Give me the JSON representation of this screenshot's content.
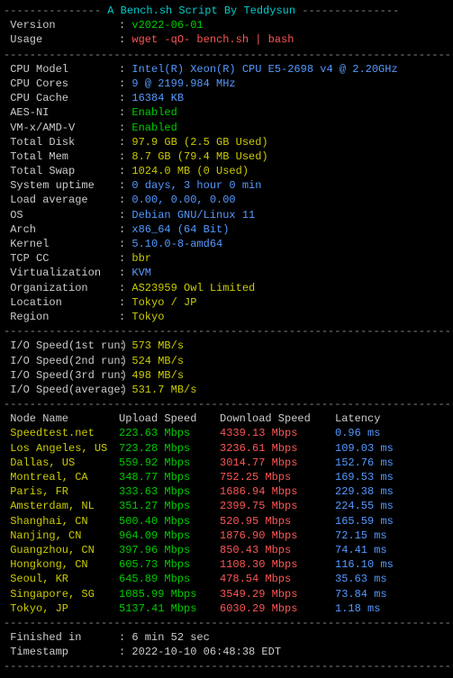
{
  "title": "A Bench.sh Script By Teddysun",
  "version_label": " Version",
  "version_value": "v2022-06-01",
  "usage_label": " Usage",
  "usage_value": "wget -qO- bench.sh | bash",
  "sys": [
    {
      "label": " CPU Model",
      "value": "Intel(R) Xeon(R) CPU E5-2698 v4 @ 2.20GHz",
      "color": "blue"
    },
    {
      "label": " CPU Cores",
      "value": "9 @ 2199.984 MHz",
      "color": "blue"
    },
    {
      "label": " CPU Cache",
      "value": "16384 KB",
      "color": "blue"
    },
    {
      "label": " AES-NI",
      "value": "Enabled",
      "color": "green"
    },
    {
      "label": " VM-x/AMD-V",
      "value": "Enabled",
      "color": "green"
    },
    {
      "label": " Total Disk",
      "value": "97.9 GB (2.5 GB Used)",
      "color": "yellow"
    },
    {
      "label": " Total Mem",
      "value": "8.7 GB (79.4 MB Used)",
      "color": "yellow"
    },
    {
      "label": " Total Swap",
      "value": "1024.0 MB (0 Used)",
      "color": "yellow"
    },
    {
      "label": " System uptime",
      "value": "0 days, 3 hour 0 min",
      "color": "blue"
    },
    {
      "label": " Load average",
      "value": "0.00, 0.00, 0.00",
      "color": "blue"
    },
    {
      "label": " OS",
      "value": "Debian GNU/Linux 11",
      "color": "blue"
    },
    {
      "label": " Arch",
      "value": "x86_64 (64 Bit)",
      "color": "blue"
    },
    {
      "label": " Kernel",
      "value": "5.10.0-8-amd64",
      "color": "blue"
    },
    {
      "label": " TCP CC",
      "value": "bbr",
      "color": "yellow"
    },
    {
      "label": " Virtualization",
      "value": "KVM",
      "color": "blue"
    },
    {
      "label": " Organization",
      "value": "AS23959 Owl Limited",
      "color": "yellow"
    },
    {
      "label": " Location",
      "value": "Tokyo / JP",
      "color": "yellow"
    },
    {
      "label": " Region",
      "value": "Tokyo",
      "color": "yellow"
    }
  ],
  "io": [
    {
      "label": " I/O Speed(1st run)",
      "value": "573 MB/s"
    },
    {
      "label": " I/O Speed(2nd run)",
      "value": "524 MB/s"
    },
    {
      "label": " I/O Speed(3rd run)",
      "value": "498 MB/s"
    },
    {
      "label": " I/O Speed(average)",
      "value": "531.7 MB/s"
    }
  ],
  "speed_headers": {
    "node": " Node Name",
    "up": "Upload Speed",
    "down": "Download Speed",
    "lat": "Latency"
  },
  "speed": [
    {
      "node": " Speedtest.net",
      "up": "223.63 Mbps",
      "down": "4339.13 Mbps",
      "lat": "0.96 ms"
    },
    {
      "node": " Los Angeles, US",
      "up": "723.28 Mbps",
      "down": "3236.61 Mbps",
      "lat": "109.03 ms"
    },
    {
      "node": " Dallas, US",
      "up": "559.92 Mbps",
      "down": "3014.77 Mbps",
      "lat": "152.76 ms"
    },
    {
      "node": " Montreal, CA",
      "up": "348.77 Mbps",
      "down": "752.25 Mbps",
      "lat": "169.53 ms"
    },
    {
      "node": " Paris, FR",
      "up": "333.63 Mbps",
      "down": "1686.94 Mbps",
      "lat": "229.38 ms"
    },
    {
      "node": " Amsterdam, NL",
      "up": "351.27 Mbps",
      "down": "2399.75 Mbps",
      "lat": "224.55 ms"
    },
    {
      "node": " Shanghai, CN",
      "up": "500.40 Mbps",
      "down": "520.95 Mbps",
      "lat": "165.59 ms"
    },
    {
      "node": " Nanjing, CN",
      "up": "964.09 Mbps",
      "down": "1876.90 Mbps",
      "lat": "72.15 ms"
    },
    {
      "node": " Guangzhou, CN",
      "up": "397.96 Mbps",
      "down": "850.43 Mbps",
      "lat": "74.41 ms"
    },
    {
      "node": " Hongkong, CN",
      "up": "605.73 Mbps",
      "down": "1108.30 Mbps",
      "lat": "116.10 ms"
    },
    {
      "node": " Seoul, KR",
      "up": "645.89 Mbps",
      "down": "478.54 Mbps",
      "lat": "35.63 ms"
    },
    {
      "node": " Singapore, SG",
      "up": "1085.99 Mbps",
      "down": "3549.29 Mbps",
      "lat": "73.84 ms"
    },
    {
      "node": " Tokyo, JP",
      "up": "5137.41 Mbps",
      "down": "6030.29 Mbps",
      "lat": "1.18 ms"
    }
  ],
  "finished_label": " Finished in",
  "finished_value": "6 min 52 sec",
  "timestamp_label": " Timestamp",
  "timestamp_value": "2022-10-10 06:48:38 EDT",
  "divider_short": "----------------------------------------------------------------------",
  "header_dashes_left": "--------------- ",
  "header_dashes_right": " ---------------"
}
